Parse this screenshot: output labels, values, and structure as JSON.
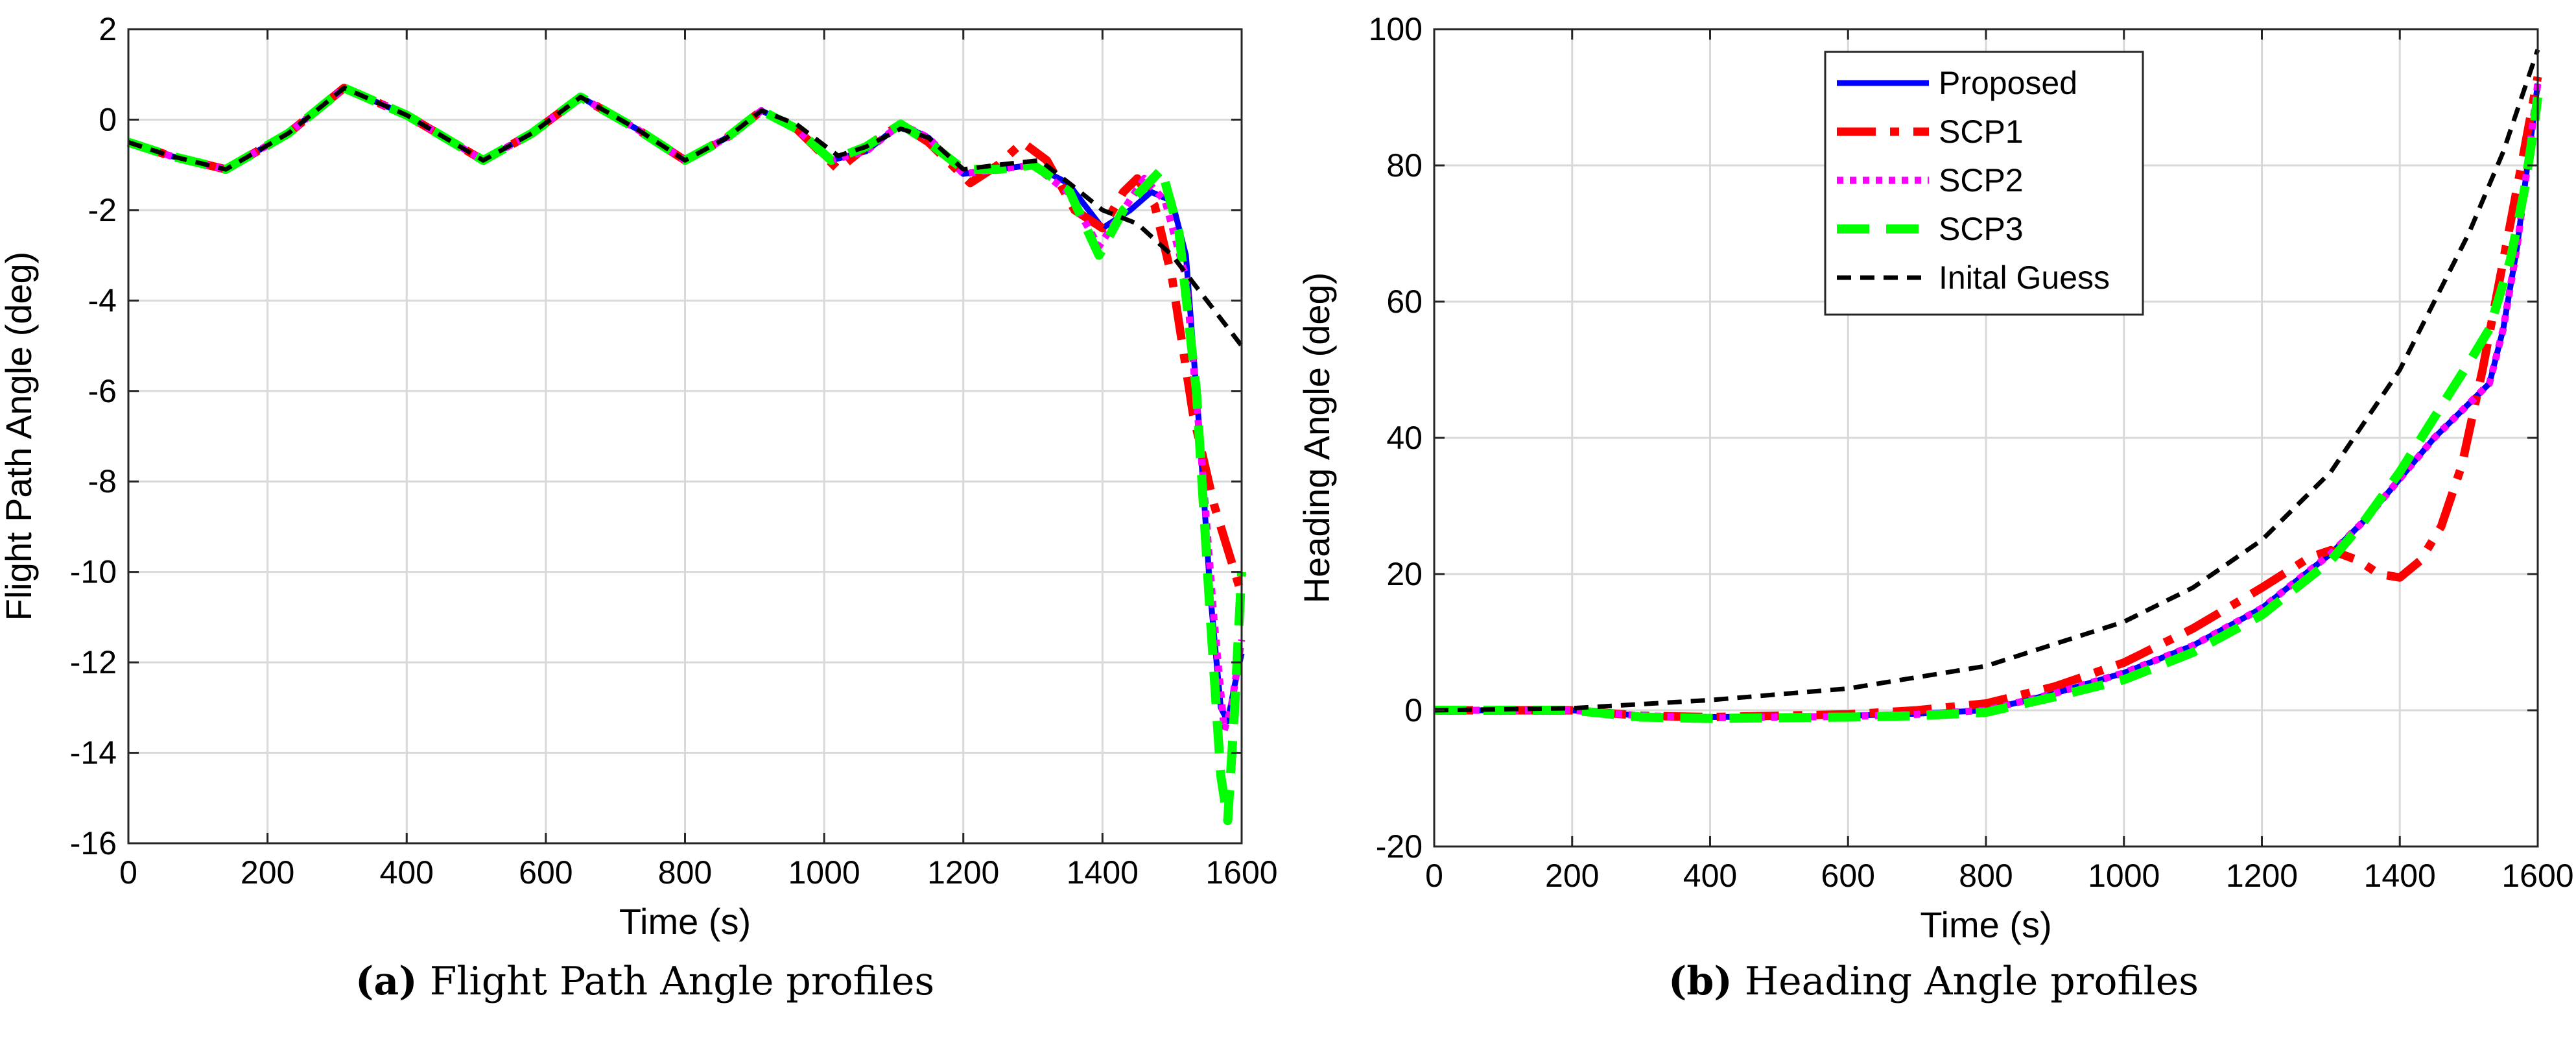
{
  "colors": {
    "proposed": "#0000ff",
    "scp1": "#ff0000",
    "scp2": "#ff00ff",
    "scp3": "#00ff00",
    "guess": "#000000",
    "grid": "#d9d9d9",
    "axis": "#262626"
  },
  "captions": {
    "a_label": "(a)",
    "a_text": "Flight Path Angle profiles",
    "b_label": "(b)",
    "b_text": "Heading Angle profiles"
  },
  "chart_data": [
    {
      "type": "line",
      "xlabel": "Time (s)",
      "ylabel": "Flight Path Angle (deg)",
      "xlim": [
        0,
        1600
      ],
      "ylim": [
        -16,
        2
      ],
      "xticks": [
        0,
        200,
        400,
        600,
        800,
        1000,
        1200,
        1400,
        1600
      ],
      "yticks": [
        -16,
        -14,
        -12,
        -10,
        -8,
        -6,
        -4,
        -2,
        0,
        2
      ],
      "grid": true,
      "legend": "none",
      "series": [
        {
          "name": "Proposed",
          "x": [
            0,
            60,
            140,
            230,
            310,
            400,
            510,
            580,
            650,
            730,
            800,
            860,
            910,
            960,
            1010,
            1060,
            1110,
            1150,
            1200,
            1250,
            1300,
            1350,
            1400,
            1440,
            1470,
            1500,
            1520,
            1540,
            1555,
            1570,
            1580,
            1590,
            1600
          ],
          "y": [
            -0.5,
            -0.8,
            -1.1,
            -0.3,
            0.7,
            0.1,
            -0.9,
            -0.3,
            0.5,
            -0.2,
            -0.9,
            -0.4,
            0.2,
            -0.2,
            -0.9,
            -0.7,
            -0.1,
            -0.4,
            -1.2,
            -1.1,
            -1.0,
            -1.4,
            -2.4,
            -2.0,
            -1.6,
            -1.8,
            -3.0,
            -7.0,
            -10.5,
            -13.0,
            -13.3,
            -12.5,
            -11.8
          ]
        },
        {
          "name": "SCP1",
          "x": [
            0,
            60,
            140,
            230,
            310,
            400,
            510,
            580,
            650,
            730,
            800,
            860,
            910,
            960,
            1020,
            1060,
            1110,
            1150,
            1210,
            1250,
            1285,
            1320,
            1360,
            1400,
            1430,
            1450,
            1475,
            1500,
            1530,
            1560,
            1580,
            1600
          ],
          "y": [
            -0.5,
            -0.8,
            -1.1,
            -0.3,
            0.7,
            0.1,
            -0.9,
            -0.3,
            0.5,
            -0.2,
            -0.9,
            -0.4,
            0.2,
            -0.2,
            -1.1,
            -0.6,
            -0.1,
            -0.5,
            -1.4,
            -1.0,
            -0.5,
            -0.9,
            -2.0,
            -2.4,
            -1.6,
            -1.3,
            -1.9,
            -3.5,
            -6.5,
            -8.5,
            -9.5,
            -10.5
          ]
        },
        {
          "name": "SCP2",
          "x": [
            0,
            60,
            140,
            230,
            310,
            400,
            510,
            580,
            650,
            730,
            800,
            860,
            910,
            960,
            1010,
            1060,
            1110,
            1150,
            1200,
            1250,
            1300,
            1350,
            1395,
            1430,
            1460,
            1490,
            1520,
            1545,
            1560,
            1575,
            1585,
            1595,
            1600
          ],
          "y": [
            -0.5,
            -0.8,
            -1.1,
            -0.3,
            0.7,
            0.1,
            -0.9,
            -0.3,
            0.5,
            -0.2,
            -0.9,
            -0.4,
            0.2,
            -0.2,
            -0.9,
            -0.7,
            -0.1,
            -0.4,
            -1.2,
            -1.1,
            -1.0,
            -1.6,
            -2.8,
            -2.0,
            -1.3,
            -1.8,
            -3.5,
            -8.0,
            -11.0,
            -13.5,
            -13.0,
            -12.0,
            -11.5
          ]
        },
        {
          "name": "SCP3",
          "x": [
            0,
            60,
            140,
            230,
            310,
            400,
            510,
            580,
            650,
            730,
            800,
            860,
            910,
            960,
            1010,
            1060,
            1110,
            1150,
            1200,
            1250,
            1300,
            1350,
            1395,
            1430,
            1460,
            1485,
            1510,
            1535,
            1555,
            1570,
            1580,
            1590,
            1600
          ],
          "y": [
            -0.5,
            -0.8,
            -1.1,
            -0.3,
            0.7,
            0.1,
            -0.9,
            -0.3,
            0.5,
            -0.2,
            -0.9,
            -0.4,
            0.2,
            -0.2,
            -0.9,
            -0.6,
            -0.1,
            -0.5,
            -1.1,
            -1.1,
            -1.0,
            -1.5,
            -3.0,
            -2.0,
            -1.5,
            -1.1,
            -2.5,
            -6.0,
            -11.0,
            -14.5,
            -15.5,
            -13.0,
            -10.0
          ]
        },
        {
          "name": "Inital Guess",
          "x": [
            0,
            60,
            140,
            230,
            310,
            400,
            510,
            580,
            650,
            730,
            800,
            860,
            910,
            960,
            1020,
            1060,
            1110,
            1150,
            1200,
            1250,
            1310,
            1360,
            1400,
            1450,
            1500,
            1550,
            1600
          ],
          "y": [
            -0.5,
            -0.8,
            -1.1,
            -0.3,
            0.7,
            0.1,
            -0.9,
            -0.3,
            0.5,
            -0.2,
            -0.9,
            -0.4,
            0.2,
            -0.1,
            -0.8,
            -0.6,
            -0.2,
            -0.4,
            -1.1,
            -1.0,
            -0.9,
            -1.5,
            -2.0,
            -2.3,
            -3.0,
            -4.0,
            -5.0
          ]
        }
      ]
    },
    {
      "type": "line",
      "xlabel": "Time (s)",
      "ylabel": "Heading Angle (deg)",
      "xlim": [
        0,
        1600
      ],
      "ylim": [
        -20,
        100
      ],
      "xticks": [
        0,
        200,
        400,
        600,
        800,
        1000,
        1200,
        1400,
        1600
      ],
      "yticks": [
        -20,
        0,
        20,
        40,
        60,
        80,
        100
      ],
      "grid": true,
      "legend": "top-center",
      "series": [
        {
          "name": "Proposed",
          "x": [
            0,
            200,
            300,
            400,
            600,
            700,
            800,
            900,
            1000,
            1100,
            1200,
            1300,
            1350,
            1400,
            1450,
            1500,
            1530,
            1550,
            1570,
            1590,
            1600
          ],
          "y": [
            0,
            0,
            -0.8,
            -1.0,
            -0.8,
            -0.5,
            0,
            2.5,
            5.5,
            9.5,
            15,
            23,
            28,
            34,
            40,
            45,
            48,
            56,
            68,
            84,
            92
          ]
        },
        {
          "name": "SCP1",
          "x": [
            0,
            200,
            300,
            400,
            600,
            700,
            800,
            900,
            1000,
            1100,
            1200,
            1270,
            1300,
            1340,
            1370,
            1400,
            1430,
            1460,
            1490,
            1520,
            1550,
            1580,
            1600
          ],
          "y": [
            0,
            0,
            -0.8,
            -1.0,
            -0.6,
            0,
            1.0,
            3.5,
            7.0,
            12,
            18,
            22.5,
            23.5,
            22,
            20,
            19.5,
            22,
            27,
            36,
            50,
            66,
            82,
            93
          ]
        },
        {
          "name": "SCP2",
          "x": [
            0,
            200,
            300,
            400,
            600,
            700,
            800,
            900,
            1000,
            1100,
            1200,
            1300,
            1350,
            1400,
            1450,
            1500,
            1530,
            1550,
            1570,
            1590,
            1600
          ],
          "y": [
            0,
            0,
            -0.8,
            -1.1,
            -0.9,
            -0.6,
            0,
            2.5,
            5.5,
            9.5,
            15,
            23,
            28,
            34,
            40,
            45,
            48,
            56,
            68,
            84,
            92
          ]
        },
        {
          "name": "SCP3",
          "x": [
            0,
            200,
            300,
            400,
            600,
            700,
            800,
            900,
            1000,
            1100,
            1200,
            1300,
            1350,
            1400,
            1450,
            1500,
            1530,
            1560,
            1580,
            1595,
            1600
          ],
          "y": [
            0,
            0,
            -1.0,
            -1.2,
            -1.0,
            -0.8,
            -0.3,
            2.0,
            4.5,
            8.5,
            14,
            22,
            28,
            35,
            43,
            51,
            56,
            66,
            76,
            86,
            90
          ]
        },
        {
          "name": "Inital Guess",
          "x": [
            0,
            200,
            400,
            600,
            800,
            1000,
            1100,
            1200,
            1300,
            1400,
            1450,
            1500,
            1550,
            1600
          ],
          "y": [
            0,
            0.3,
            1.5,
            3.2,
            6.5,
            13,
            18,
            25,
            35,
            50,
            60,
            70,
            82,
            97
          ]
        }
      ]
    }
  ]
}
